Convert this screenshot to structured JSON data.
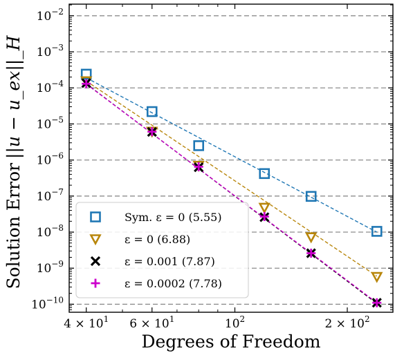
{
  "chart_data": {
    "type": "scatter",
    "x_scale": "log",
    "y_scale": "log",
    "xlabel": "Degrees of Freedom",
    "ylabel": "Solution Error",
    "ylabel_math": "||u − u_ex||_H",
    "xlim": [
      36,
      265
    ],
    "ylim": [
      6e-11,
      0.021
    ],
    "x_ticks": [
      {
        "value": 40,
        "base": "4",
        "exp": "1"
      },
      {
        "value": 60,
        "base": "6",
        "exp": "1"
      },
      {
        "value": 100,
        "base": "",
        "exp": "2"
      },
      {
        "value": 200,
        "base": "2",
        "exp": "2"
      }
    ],
    "y_ticks": [
      {
        "value": 1e-10,
        "exp": "−10"
      },
      {
        "value": 1e-09,
        "exp": "−9"
      },
      {
        "value": 1e-08,
        "exp": "−8"
      },
      {
        "value": 1e-07,
        "exp": "−7"
      },
      {
        "value": 1e-06,
        "exp": "−6"
      },
      {
        "value": 1e-05,
        "exp": "−5"
      },
      {
        "value": 0.0001,
        "exp": "−4"
      },
      {
        "value": 0.001,
        "exp": "−3"
      },
      {
        "value": 0.01,
        "exp": "−2"
      }
    ],
    "grid": {
      "y_major": true,
      "style": "dashed"
    },
    "legend_position": "bottom-left",
    "series": [
      {
        "name": "Sym. ε = 0 (5.55)",
        "color": "#1f77b4",
        "marker": "square",
        "x": [
          40,
          60,
          80,
          120,
          160,
          240
        ],
        "y": [
          0.00024,
          2.2e-05,
          2.5e-06,
          4.2e-07,
          9.8e-08,
          1.05e-08
        ],
        "fit": {
          "x": [
            40,
            240
          ],
          "y": [
            0.00019,
            1e-08
          ]
        }
      },
      {
        "name": "ε = 0 (6.88)",
        "color": "#b8860b",
        "marker": "triangle-down",
        "x": [
          40,
          60,
          80,
          120,
          160,
          240
        ],
        "y": [
          0.000155,
          6.2e-06,
          7e-07,
          4.8e-08,
          7.3e-09,
          5.8e-10
        ],
        "fit": {
          "x": [
            40,
            240
          ],
          "y": [
            0.000155,
            6e-10
          ]
        }
      },
      {
        "name": "ε = 0.001 (7.87)",
        "color": "#000000",
        "marker": "x",
        "x": [
          40,
          60,
          80,
          120,
          160,
          240
        ],
        "y": [
          0.000135,
          6e-06,
          6.3e-07,
          2.6e-08,
          2.6e-09,
          1.1e-10
        ],
        "fit": {
          "x": [
            40,
            240
          ],
          "y": [
            0.00013,
            1.05e-10
          ]
        }
      },
      {
        "name": "ε = 0.0002 (7.78)",
        "color": "#cc00cc",
        "marker": "plus",
        "x": [
          40,
          60,
          80,
          120,
          160,
          240
        ],
        "y": [
          0.00013,
          6.1e-06,
          6.5e-07,
          2.7e-08,
          2.6e-09,
          1.1e-10
        ],
        "fit": {
          "x": [
            40,
            240
          ],
          "y": [
            0.000128,
            1.1e-10
          ]
        }
      }
    ]
  }
}
